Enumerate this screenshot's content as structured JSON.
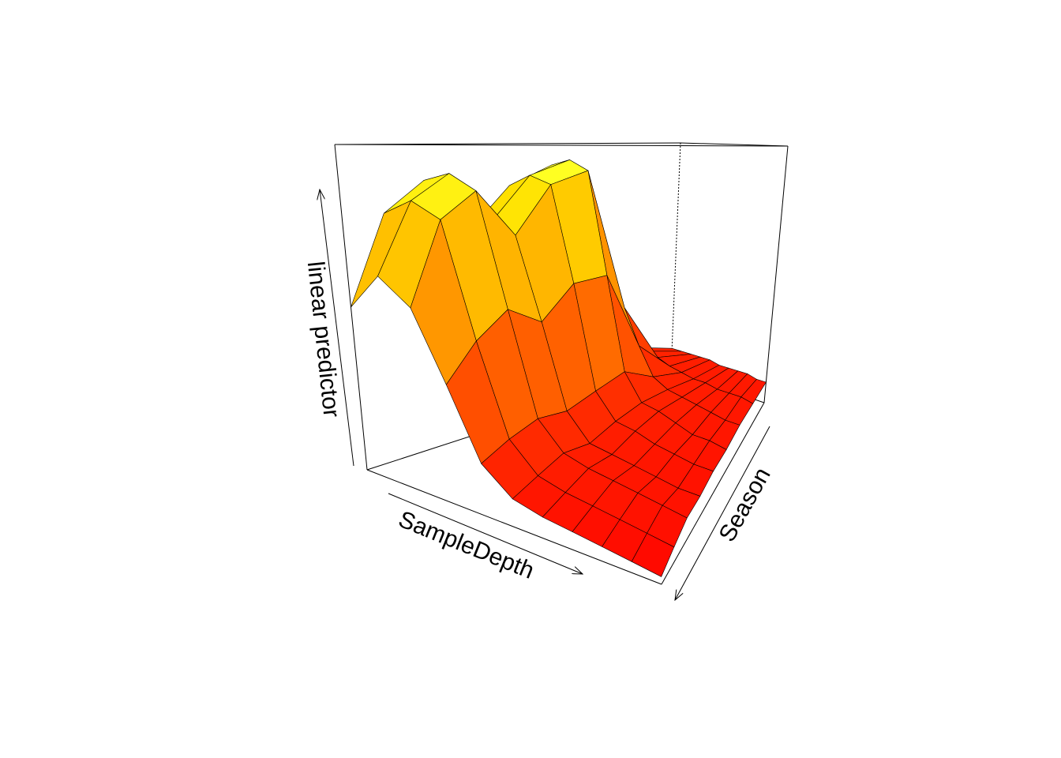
{
  "chart_data": {
    "type": "surface",
    "zlabel": "linear predictor",
    "xlabel": "SampleDepth",
    "ylabel": "Season",
    "colormap": "heat",
    "zlim": [
      0,
      1
    ],
    "z": [
      [
        0.5,
        0.62,
        0.55,
        0.35,
        0.15,
        0.08,
        0.06,
        0.05,
        0.04,
        0.03,
        0.02
      ],
      [
        0.78,
        0.84,
        0.8,
        0.45,
        0.18,
        0.1,
        0.08,
        0.07,
        0.06,
        0.05,
        0.04
      ],
      [
        0.88,
        0.92,
        0.88,
        0.52,
        0.2,
        0.12,
        0.1,
        0.09,
        0.08,
        0.07,
        0.06
      ],
      [
        0.7,
        0.75,
        0.72,
        0.45,
        0.18,
        0.1,
        0.09,
        0.08,
        0.07,
        0.06,
        0.06
      ],
      [
        0.85,
        0.9,
        0.88,
        0.55,
        0.2,
        0.12,
        0.11,
        0.09,
        0.08,
        0.07,
        0.07
      ],
      [
        0.92,
        0.95,
        0.92,
        0.55,
        0.22,
        0.13,
        0.12,
        0.1,
        0.08,
        0.08,
        0.07
      ],
      [
        0.4,
        0.42,
        0.38,
        0.25,
        0.15,
        0.12,
        0.11,
        0.1,
        0.09,
        0.08,
        0.08
      ],
      [
        0.15,
        0.15,
        0.14,
        0.12,
        0.11,
        0.1,
        0.1,
        0.09,
        0.09,
        0.09,
        0.08
      ],
      [
        0.1,
        0.1,
        0.1,
        0.1,
        0.1,
        0.09,
        0.09,
        0.09,
        0.09,
        0.08,
        0.08
      ]
    ]
  }
}
